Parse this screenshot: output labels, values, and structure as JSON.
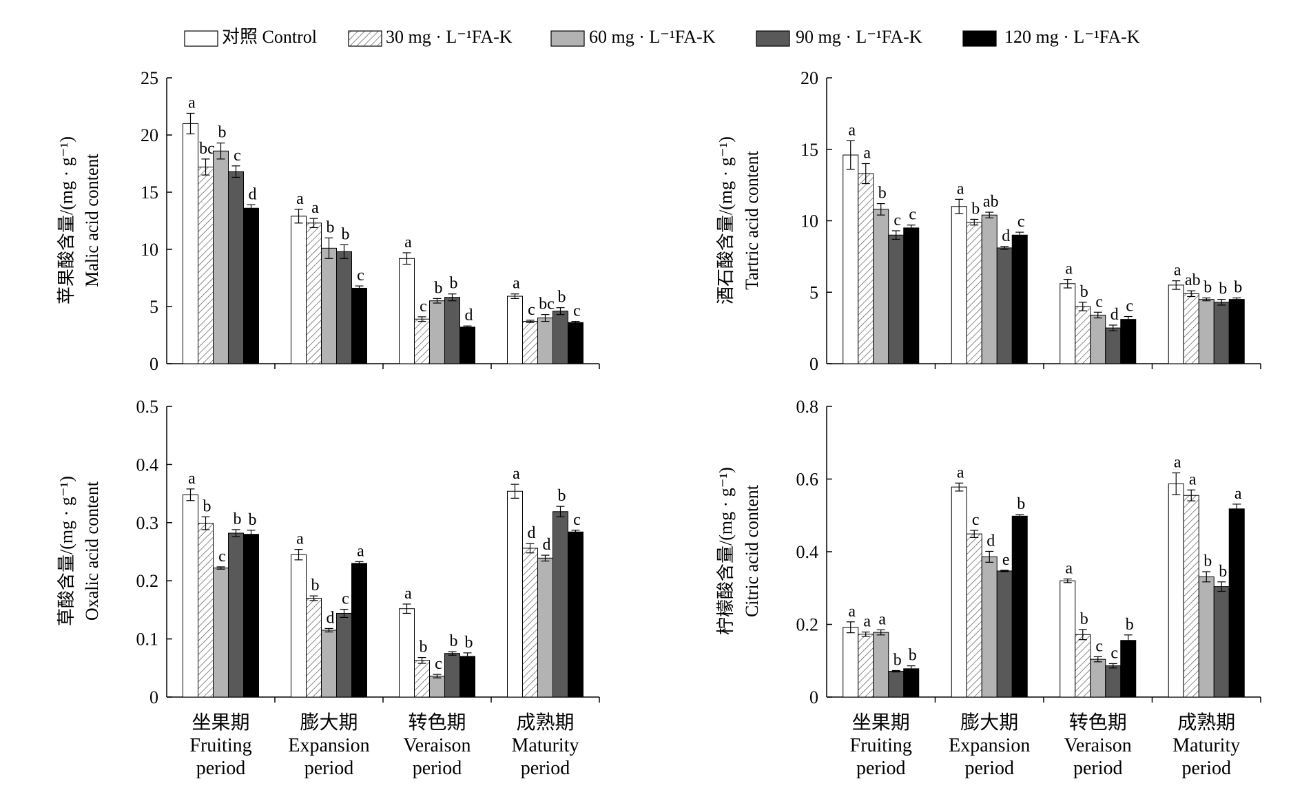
{
  "legend": {
    "items": [
      {
        "label": "对照 Control",
        "pattern": "control"
      },
      {
        "label": "30 mg · L⁻¹FA-K",
        "pattern": "hatch"
      },
      {
        "label": "60 mg · L⁻¹FA-K",
        "pattern": "lightgray"
      },
      {
        "label": "90 mg · L⁻¹FA-K",
        "pattern": "darkgray"
      },
      {
        "label": "120 mg · L⁻¹FA-K",
        "pattern": "black"
      }
    ]
  },
  "colors": {
    "control": "#ffffff",
    "lightgray": "#b3b3b3",
    "darkgray": "#595959",
    "black": "#000000",
    "axis": "#000000"
  },
  "periods": [
    [
      "坐果期",
      "Fruiting",
      "period"
    ],
    [
      "膨大期",
      "Expansion",
      "period"
    ],
    [
      "转色期",
      "Veraison",
      "period"
    ],
    [
      "成熟期",
      "Maturity",
      "period"
    ]
  ],
  "chart_data": [
    {
      "type": "bar",
      "ylabel_cn": "苹果酸含量/(mg · g⁻¹)",
      "ylabel_en": "Malic acid content",
      "ylim": [
        0,
        25
      ],
      "yticks": [
        "0",
        "5",
        "10",
        "15",
        "20",
        "25"
      ],
      "show_period_labels": false,
      "categories": [
        "坐果期 Fruiting period",
        "膨大期 Expansion period",
        "转色期 Veraison period",
        "成熟期 Maturity period"
      ],
      "series": [
        {
          "name": "对照 Control",
          "values": [
            21.0,
            12.9,
            9.2,
            5.9
          ],
          "errors": [
            0.9,
            0.6,
            0.5,
            0.2
          ],
          "letters": [
            "a",
            "a",
            "a",
            "a"
          ]
        },
        {
          "name": "30 mg · L⁻¹FA-K",
          "values": [
            17.2,
            12.3,
            3.9,
            3.7
          ],
          "errors": [
            0.7,
            0.4,
            0.2,
            0.1
          ],
          "letters": [
            "bc",
            "a",
            "c",
            "c"
          ]
        },
        {
          "name": "60 mg · L⁻¹FA-K",
          "values": [
            18.6,
            10.1,
            5.5,
            4.0
          ],
          "errors": [
            0.7,
            0.9,
            0.2,
            0.3
          ],
          "letters": [
            "b",
            "b",
            "b",
            "bc"
          ]
        },
        {
          "name": "90 mg · L⁻¹FA-K",
          "values": [
            16.8,
            9.8,
            5.8,
            4.6
          ],
          "errors": [
            0.5,
            0.6,
            0.3,
            0.3
          ],
          "letters": [
            "c",
            "b",
            "b",
            "b"
          ]
        },
        {
          "name": "120 mg · L⁻¹FA-K",
          "values": [
            13.6,
            6.6,
            3.2,
            3.6
          ],
          "errors": [
            0.3,
            0.2,
            0.1,
            0.1
          ],
          "letters": [
            "d",
            "c",
            "d",
            "c"
          ]
        }
      ]
    },
    {
      "type": "bar",
      "ylabel_cn": "酒石酸含量/(mg · g⁻¹)",
      "ylabel_en": "Tartric acid content",
      "ylim": [
        0,
        20
      ],
      "yticks": [
        "0",
        "5",
        "10",
        "15",
        "20"
      ],
      "show_period_labels": false,
      "categories": [
        "坐果期 Fruiting period",
        "膨大期 Expansion period",
        "转色期 Veraison period",
        "成熟期 Maturity period"
      ],
      "series": [
        {
          "name": "对照 Control",
          "values": [
            14.6,
            11.0,
            5.6,
            5.5
          ],
          "errors": [
            1.0,
            0.5,
            0.3,
            0.3
          ],
          "letters": [
            "a",
            "a",
            "a",
            "a"
          ]
        },
        {
          "name": "30 mg · L⁻¹FA-K",
          "values": [
            13.3,
            9.9,
            4.0,
            4.9
          ],
          "errors": [
            0.7,
            0.2,
            0.3,
            0.2
          ],
          "letters": [
            "a",
            "b",
            "b",
            "ab"
          ]
        },
        {
          "name": "60 mg · L⁻¹FA-K",
          "values": [
            10.8,
            10.4,
            3.4,
            4.5
          ],
          "errors": [
            0.4,
            0.2,
            0.2,
            0.1
          ],
          "letters": [
            "b",
            "ab",
            "c",
            "b"
          ]
        },
        {
          "name": "90 mg · L⁻¹FA-K",
          "values": [
            9.0,
            8.1,
            2.5,
            4.3
          ],
          "errors": [
            0.3,
            0.1,
            0.2,
            0.2
          ],
          "letters": [
            "c",
            "d",
            "d",
            "b"
          ]
        },
        {
          "name": "120 mg · L⁻¹FA-K",
          "values": [
            9.5,
            9.0,
            3.1,
            4.5
          ],
          "errors": [
            0.2,
            0.2,
            0.2,
            0.1
          ],
          "letters": [
            "c",
            "c",
            "c",
            "b"
          ]
        }
      ]
    },
    {
      "type": "bar",
      "ylabel_cn": "草酸含量/(mg · g⁻¹)",
      "ylabel_en": "Oxalic acid content",
      "ylim": [
        0,
        0.5
      ],
      "yticks": [
        "0",
        "0.1",
        "0.2",
        "0.3",
        "0.4",
        "0.5"
      ],
      "show_period_labels": true,
      "categories": [
        "坐果期 Fruiting period",
        "膨大期 Expansion period",
        "转色期 Veraison period",
        "成熟期 Maturity period"
      ],
      "series": [
        {
          "name": "对照 Control",
          "values": [
            0.348,
            0.245,
            0.152,
            0.354
          ],
          "errors": [
            0.01,
            0.009,
            0.008,
            0.012
          ],
          "letters": [
            "a",
            "a",
            "a",
            "a"
          ]
        },
        {
          "name": "30 mg · L⁻¹FA-K",
          "values": [
            0.299,
            0.17,
            0.063,
            0.256
          ],
          "errors": [
            0.011,
            0.004,
            0.005,
            0.008
          ],
          "letters": [
            "b",
            "b",
            "b",
            "d"
          ]
        },
        {
          "name": "60 mg · L⁻¹FA-K",
          "values": [
            0.222,
            0.115,
            0.036,
            0.239
          ],
          "errors": [
            0.002,
            0.003,
            0.003,
            0.005
          ],
          "letters": [
            "c",
            "d",
            "c",
            "d"
          ]
        },
        {
          "name": "90 mg · L⁻¹FA-K",
          "values": [
            0.282,
            0.144,
            0.075,
            0.319
          ],
          "errors": [
            0.006,
            0.007,
            0.003,
            0.009
          ],
          "letters": [
            "b",
            "c",
            "b",
            "b"
          ]
        },
        {
          "name": "120 mg · L⁻¹FA-K",
          "values": [
            0.28,
            0.23,
            0.07,
            0.284
          ],
          "errors": [
            0.007,
            0.003,
            0.006,
            0.003
          ],
          "letters": [
            "b",
            "a",
            "b",
            "c"
          ]
        }
      ]
    },
    {
      "type": "bar",
      "ylabel_cn": "柠檬酸含量/(mg · g⁻¹)",
      "ylabel_en": "Citric acid content",
      "ylim": [
        0,
        0.8
      ],
      "yticks": [
        "0",
        "0.2",
        "0.4",
        "0.6",
        "0.8"
      ],
      "show_period_labels": true,
      "categories": [
        "坐果期 Fruiting period",
        "膨大期 Expansion period",
        "转色期 Veraison period",
        "成熟期 Maturity period"
      ],
      "series": [
        {
          "name": "对照 Control",
          "values": [
            0.192,
            0.578,
            0.32,
            0.587
          ],
          "errors": [
            0.015,
            0.011,
            0.005,
            0.03
          ],
          "letters": [
            "a",
            "a",
            "a",
            "a"
          ]
        },
        {
          "name": "30 mg · L⁻¹FA-K",
          "values": [
            0.173,
            0.449,
            0.172,
            0.555
          ],
          "errors": [
            0.006,
            0.01,
            0.014,
            0.015
          ],
          "letters": [
            "a",
            "c",
            "b",
            "a"
          ]
        },
        {
          "name": "60 mg · L⁻¹FA-K",
          "values": [
            0.178,
            0.386,
            0.104,
            0.331
          ],
          "errors": [
            0.007,
            0.015,
            0.007,
            0.014
          ],
          "letters": [
            "a",
            "d",
            "c",
            "b"
          ]
        },
        {
          "name": "90 mg · L⁻¹FA-K",
          "values": [
            0.071,
            0.347,
            0.086,
            0.304
          ],
          "errors": [
            0.002,
            0.002,
            0.006,
            0.013
          ],
          "letters": [
            "b",
            "e",
            "c",
            "b"
          ]
        },
        {
          "name": "120 mg · L⁻¹FA-K",
          "values": [
            0.078,
            0.498,
            0.156,
            0.518
          ],
          "errors": [
            0.008,
            0.004,
            0.015,
            0.013
          ],
          "letters": [
            "b",
            "b",
            "b",
            "a"
          ]
        }
      ]
    }
  ]
}
